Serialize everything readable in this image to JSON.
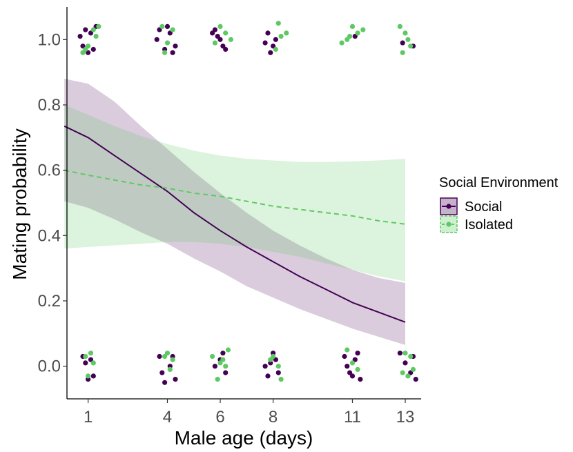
{
  "chart_data": {
    "type": "line",
    "xlabel": "Male age (days)",
    "ylabel": "Mating probability",
    "xlim": [
      0.2,
      13.6
    ],
    "ylim": [
      -0.1,
      1.1
    ],
    "x_ticks": [
      1,
      4,
      6,
      8,
      11,
      13
    ],
    "y_ticks": [
      0.0,
      0.2,
      0.4,
      0.6,
      0.8,
      1.0
    ],
    "y_tick_labels": [
      "0.0",
      "0.2",
      "0.4",
      "0.6",
      "0.8",
      "1.0"
    ],
    "grid": false,
    "legend": {
      "title": "Social Environment",
      "position": "right"
    },
    "series": [
      {
        "name": "Social",
        "color": "#440154",
        "ribbon_color": "#440154",
        "line_style": "solid",
        "x": [
          0.1,
          1,
          2,
          3,
          4,
          5,
          6,
          7,
          8,
          9,
          10,
          11,
          12,
          13
        ],
        "fit": [
          0.735,
          0.7,
          0.645,
          0.59,
          0.535,
          0.47,
          0.415,
          0.365,
          0.32,
          0.275,
          0.235,
          0.195,
          0.165,
          0.135
        ],
        "lower": [
          0.505,
          0.485,
          0.45,
          0.41,
          0.375,
          0.33,
          0.29,
          0.245,
          0.21,
          0.175,
          0.145,
          0.115,
          0.09,
          0.065
        ],
        "upper": [
          0.88,
          0.865,
          0.81,
          0.735,
          0.665,
          0.595,
          0.53,
          0.47,
          0.415,
          0.37,
          0.33,
          0.295,
          0.27,
          0.255
        ],
        "points": [
          {
            "x": 0.9,
            "y": 1.03
          },
          {
            "x": 1.1,
            "y": 1.02
          },
          {
            "x": 0.8,
            "y": 0.98
          },
          {
            "x": 1.2,
            "y": 0.97
          },
          {
            "x": 0.7,
            "y": 1.01
          },
          {
            "x": 1.0,
            "y": 0.96
          },
          {
            "x": 1.3,
            "y": 1.04
          },
          {
            "x": 3.7,
            "y": 1.03
          },
          {
            "x": 4.1,
            "y": 1.02
          },
          {
            "x": 3.9,
            "y": 0.97
          },
          {
            "x": 4.3,
            "y": 0.98
          },
          {
            "x": 3.6,
            "y": 1.0
          },
          {
            "x": 4.2,
            "y": 0.96
          },
          {
            "x": 4.0,
            "y": 1.04
          },
          {
            "x": 5.7,
            "y": 1.02
          },
          {
            "x": 5.9,
            "y": 1.01
          },
          {
            "x": 6.1,
            "y": 0.98
          },
          {
            "x": 6.2,
            "y": 0.97
          },
          {
            "x": 5.8,
            "y": 1.03
          },
          {
            "x": 6.0,
            "y": 1.0
          },
          {
            "x": 7.8,
            "y": 1.02
          },
          {
            "x": 8.0,
            "y": 0.98
          },
          {
            "x": 7.9,
            "y": 0.96
          },
          {
            "x": 8.1,
            "y": 1.0
          },
          {
            "x": 7.7,
            "y": 0.99
          },
          {
            "x": 11.1,
            "y": 1.01
          },
          {
            "x": 12.9,
            "y": 0.99
          },
          {
            "x": 13.3,
            "y": 0.98
          },
          {
            "x": 0.8,
            "y": 0.03
          },
          {
            "x": 1.0,
            "y": -0.04
          },
          {
            "x": 1.2,
            "y": -0.03
          },
          {
            "x": 0.9,
            "y": 0.01
          },
          {
            "x": 1.1,
            "y": 0.02
          },
          {
            "x": 3.7,
            "y": 0.03
          },
          {
            "x": 3.9,
            "y": -0.05
          },
          {
            "x": 4.1,
            "y": 0.0
          },
          {
            "x": 4.3,
            "y": -0.04
          },
          {
            "x": 4.2,
            "y": 0.03
          },
          {
            "x": 3.8,
            "y": -0.02
          },
          {
            "x": 5.8,
            "y": 0.0
          },
          {
            "x": 6.0,
            "y": 0.02
          },
          {
            "x": 6.2,
            "y": -0.02
          },
          {
            "x": 6.1,
            "y": 0.04
          },
          {
            "x": 7.8,
            "y": -0.03
          },
          {
            "x": 7.9,
            "y": 0.01
          },
          {
            "x": 8.0,
            "y": 0.04
          },
          {
            "x": 8.2,
            "y": -0.02
          },
          {
            "x": 7.7,
            "y": 0.0
          },
          {
            "x": 8.1,
            "y": 0.02
          },
          {
            "x": 10.7,
            "y": 0.03
          },
          {
            "x": 10.9,
            "y": -0.02
          },
          {
            "x": 11.1,
            "y": 0.02
          },
          {
            "x": 11.3,
            "y": -0.04
          },
          {
            "x": 10.8,
            "y": 0.0
          },
          {
            "x": 11.2,
            "y": 0.04
          },
          {
            "x": 11.0,
            "y": -0.03
          },
          {
            "x": 12.8,
            "y": 0.04
          },
          {
            "x": 13.0,
            "y": 0.01
          },
          {
            "x": 13.2,
            "y": -0.02
          },
          {
            "x": 13.4,
            "y": -0.04
          },
          {
            "x": 13.3,
            "y": 0.03
          }
        ]
      },
      {
        "name": "Isolated",
        "color": "#5ec962",
        "ribbon_color": "#5ec962",
        "line_style": "dashed",
        "x": [
          0.1,
          1,
          2,
          3,
          4,
          5,
          6,
          7,
          8,
          9,
          10,
          11,
          12,
          13
        ],
        "fit": [
          0.6,
          0.585,
          0.57,
          0.555,
          0.545,
          0.53,
          0.52,
          0.505,
          0.49,
          0.48,
          0.47,
          0.46,
          0.445,
          0.435
        ],
        "lower": [
          0.36,
          0.365,
          0.37,
          0.375,
          0.38,
          0.38,
          0.375,
          0.365,
          0.35,
          0.335,
          0.315,
          0.295,
          0.275,
          0.26
        ],
        "upper": [
          0.8,
          0.77,
          0.735,
          0.705,
          0.68,
          0.66,
          0.645,
          0.635,
          0.63,
          0.625,
          0.625,
          0.627,
          0.63,
          0.635
        ],
        "points": [
          {
            "x": 0.8,
            "y": 0.96
          },
          {
            "x": 1.0,
            "y": 0.98
          },
          {
            "x": 1.2,
            "y": 1.03
          },
          {
            "x": 1.4,
            "y": 1.04
          },
          {
            "x": 0.9,
            "y": 0.97
          },
          {
            "x": 1.3,
            "y": 1.01
          },
          {
            "x": 3.8,
            "y": 1.04
          },
          {
            "x": 4.0,
            "y": 0.99
          },
          {
            "x": 4.2,
            "y": 1.03
          },
          {
            "x": 3.9,
            "y": 0.96
          },
          {
            "x": 5.8,
            "y": 0.99
          },
          {
            "x": 6.0,
            "y": 1.04
          },
          {
            "x": 6.2,
            "y": 1.02
          },
          {
            "x": 6.4,
            "y": 1.0
          },
          {
            "x": 8.1,
            "y": 0.97
          },
          {
            "x": 8.3,
            "y": 1.01
          },
          {
            "x": 8.5,
            "y": 1.02
          },
          {
            "x": 8.2,
            "y": 1.05
          },
          {
            "x": 10.6,
            "y": 0.99
          },
          {
            "x": 10.8,
            "y": 1.0
          },
          {
            "x": 11.0,
            "y": 1.04
          },
          {
            "x": 11.2,
            "y": 1.02
          },
          {
            "x": 11.4,
            "y": 1.03
          },
          {
            "x": 10.9,
            "y": 1.01
          },
          {
            "x": 12.8,
            "y": 1.04
          },
          {
            "x": 13.0,
            "y": 1.02
          },
          {
            "x": 13.1,
            "y": 1.0
          },
          {
            "x": 12.9,
            "y": 0.96
          },
          {
            "x": 13.2,
            "y": 0.98
          },
          {
            "x": 0.9,
            "y": 0.03
          },
          {
            "x": 1.1,
            "y": 0.04
          },
          {
            "x": 1.2,
            "y": 0.01
          },
          {
            "x": 1.0,
            "y": -0.03
          },
          {
            "x": 3.9,
            "y": 0.03
          },
          {
            "x": 4.0,
            "y": 0.04
          },
          {
            "x": 4.2,
            "y": 0.02
          },
          {
            "x": 4.1,
            "y": -0.01
          },
          {
            "x": 5.7,
            "y": 0.03
          },
          {
            "x": 6.0,
            "y": 0.01
          },
          {
            "x": 6.3,
            "y": 0.05
          },
          {
            "x": 6.1,
            "y": 0.02
          },
          {
            "x": 5.9,
            "y": -0.04
          },
          {
            "x": 6.2,
            "y": 0.0
          },
          {
            "x": 8.0,
            "y": 0.03
          },
          {
            "x": 8.2,
            "y": 0.0
          },
          {
            "x": 8.3,
            "y": -0.04
          },
          {
            "x": 7.9,
            "y": 0.02
          },
          {
            "x": 10.8,
            "y": 0.05
          },
          {
            "x": 11.0,
            "y": 0.01
          },
          {
            "x": 11.2,
            "y": -0.01
          },
          {
            "x": 13.0,
            "y": 0.04
          },
          {
            "x": 13.2,
            "y": 0.03
          },
          {
            "x": 13.3,
            "y": -0.01
          },
          {
            "x": 12.9,
            "y": -0.02
          },
          {
            "x": 13.1,
            "y": -0.03
          }
        ]
      }
    ]
  }
}
